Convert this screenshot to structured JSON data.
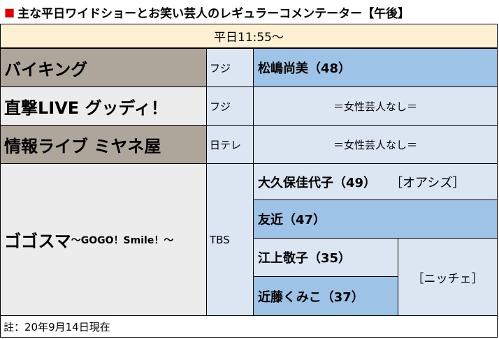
{
  "title": {
    "mark": "■",
    "text": "主な平日ワイドショーとお笑い芸人のレギュラーコメンテーター【午後】"
  },
  "header": "平日11:55〜",
  "rows": [
    {
      "show": "バイキング",
      "network": "フジ",
      "commentators": [
        {
          "name": "松嶋尚美（48）"
        }
      ]
    },
    {
      "show": "直撃LIVE グッディ！",
      "network": "フジ",
      "none": "＝女性芸人なし＝"
    },
    {
      "show": "情報ライブ ミヤネ屋",
      "network": "日テレ",
      "none": "＝女性芸人なし＝"
    },
    {
      "show_main": "ゴゴスマ",
      "show_sub": "〜GOGO！Smile！〜",
      "network": "TBS",
      "commentators": [
        {
          "name": "大久保佳代子（49）",
          "agency": "［オアシズ］"
        },
        {
          "name": "友近（47）"
        },
        {
          "name": "江上敬子（35）"
        },
        {
          "name": "近藤くみこ（37）"
        }
      ],
      "duo_agency": "［ニッチェ］"
    }
  ],
  "note": "註：20年9月14日現在"
}
